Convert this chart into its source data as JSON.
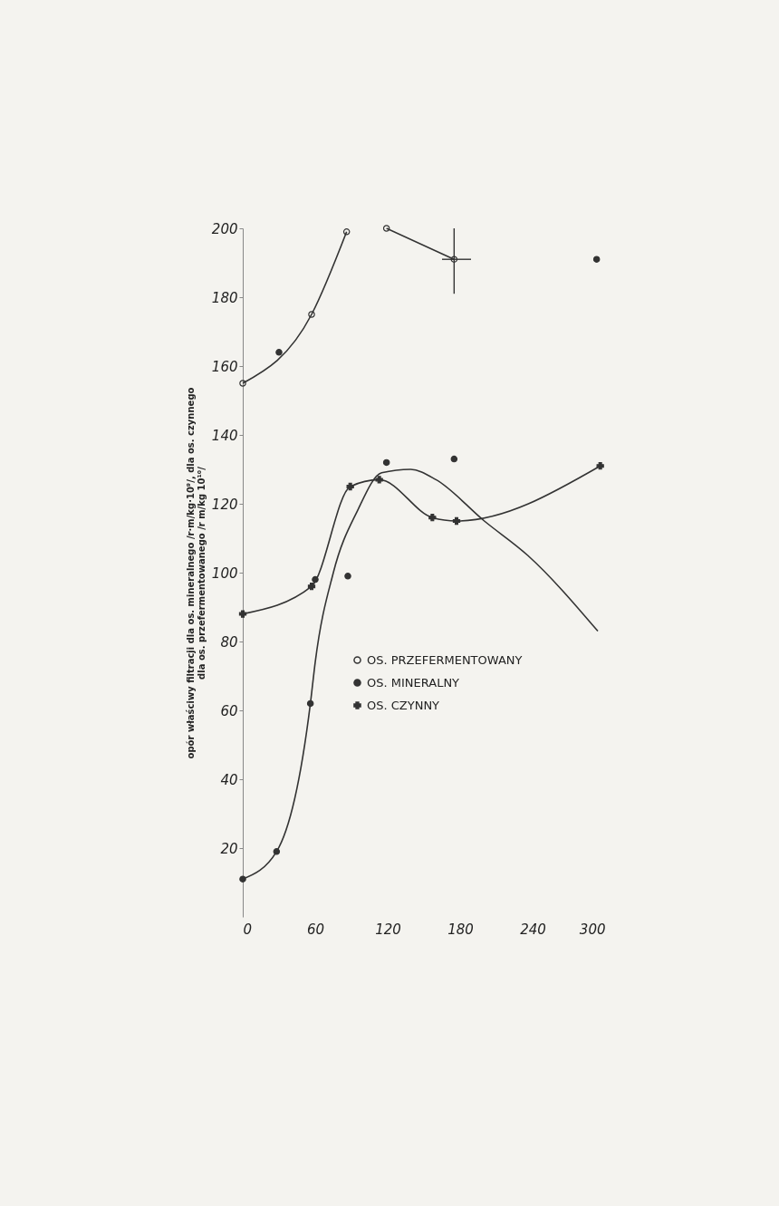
{
  "chart_data": {
    "type": "line",
    "ylabel": "opór właściwy filtracji dla os. mineralnego /r·m/kg·10⁹/, dla os. czynnego\ndla os. przefermentowanego /r m/kg 10¹⁰/",
    "xlim": [
      0,
      300
    ],
    "xticks": [
      0,
      60,
      120,
      180,
      240,
      300
    ],
    "ylim": [
      0,
      200
    ],
    "yticks": [
      20,
      40,
      60,
      80,
      100,
      120,
      140,
      160,
      180,
      200
    ],
    "grid": false,
    "legend": "right",
    "line_style": "solid",
    "series": [
      {
        "name": "OS. PRZEFERMENTOWANY",
        "type": "line",
        "marker": "circle",
        "color": "#333333",
        "x": [
          0,
          57,
          86,
          100,
          119,
          175
        ],
        "values": [
          155,
          175,
          199,
          null,
          200,
          191
        ],
        "errors": [
          null,
          null,
          null,
          null,
          null,
          [
            181,
            200
          ]
        ],
        "xerrors": [
          null,
          null,
          null,
          null,
          null,
          [
            165,
            189
          ]
        ]
      },
      {
        "name": "OS. MINERALNY",
        "type": "scatter",
        "marker": "circle",
        "color": "#333333",
        "x": [
          0,
          28,
          56,
          60,
          87,
          119,
          175,
          30,
          293
        ],
        "values": [
          11,
          19,
          62,
          98,
          99,
          132,
          133,
          164,
          191
        ]
      },
      {
        "type": "line",
        "marker": "none",
        "color": "#333333",
        "x": [
          0,
          28,
          56,
          60,
          75,
          95,
          115,
          139,
          160,
          200,
          236,
          294
        ],
        "values": [
          11,
          19,
          62,
          74,
          100,
          118,
          129,
          130,
          127,
          115,
          105,
          83
        ]
      },
      {
        "name": "OS. CZYNNY",
        "type": "line",
        "marker": "cross",
        "color": "#333333",
        "x": [
          0,
          57,
          89,
          113,
          157,
          177,
          296
        ],
        "values": [
          88,
          96,
          125,
          127,
          116,
          115,
          131
        ]
      }
    ]
  }
}
